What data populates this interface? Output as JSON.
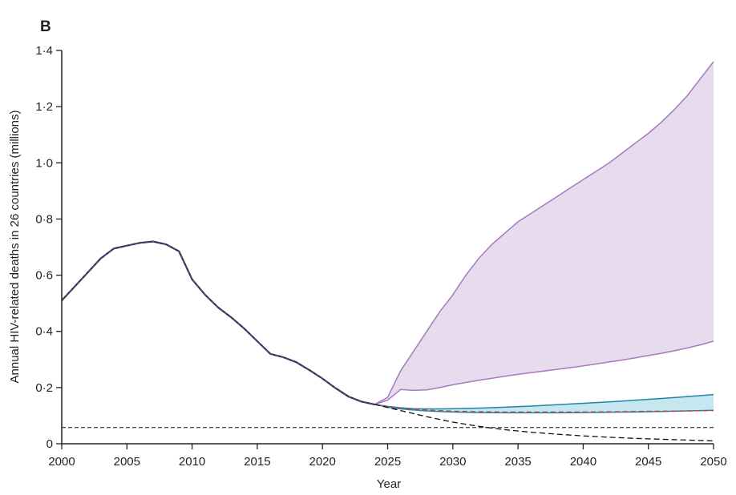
{
  "panel_label": "B",
  "chart_data": {
    "type": "line",
    "title": "",
    "xlabel": "Year",
    "ylabel": "Annual HIV-related deaths in 26 countries (millions)",
    "xlim": [
      2000,
      2050
    ],
    "ylim": [
      0,
      1.4
    ],
    "x_ticks": [
      2000,
      2005,
      2010,
      2015,
      2020,
      2025,
      2030,
      2035,
      2040,
      2045,
      2050
    ],
    "y_ticks": [
      0,
      0.2,
      0.4,
      0.6,
      0.8,
      1.0,
      1.2,
      1.4
    ],
    "y_tick_labels": [
      "0",
      "0·2",
      "0·4",
      "0·6",
      "0·8",
      "1·0",
      "1·2",
      "1·4"
    ],
    "grid": false,
    "legend": "none",
    "colors": {
      "historical": "#2f2f4f",
      "purple_line": "#a779bf",
      "purple_fill": "#e6dcee",
      "teal_line": "#1e87a8",
      "teal_fill": "#c6e6f0",
      "red_dashed": "#cc3a3a",
      "black_dashed": "#111111",
      "target": "#2f5a70"
    },
    "reference_line": {
      "y": 0.058,
      "style": "dashed"
    },
    "series": [
      {
        "role": "historical",
        "x": [
          2000,
          2001,
          2002,
          2003,
          2004,
          2005,
          2006,
          2007,
          2008,
          2009,
          2010,
          2011,
          2012,
          2013,
          2014,
          2015,
          2016,
          2017,
          2018,
          2019,
          2020,
          2021,
          2022,
          2023,
          2024
        ],
        "values": [
          0.51,
          0.56,
          0.61,
          0.66,
          0.695,
          0.705,
          0.715,
          0.72,
          0.71,
          0.685,
          0.585,
          0.53,
          0.485,
          0.45,
          0.41,
          0.365,
          0.32,
          0.308,
          0.29,
          0.262,
          0.232,
          0.198,
          0.168,
          0.15,
          0.14
        ]
      },
      {
        "role": "purple_upper",
        "x": [
          2024,
          2025,
          2026,
          2027,
          2028,
          2029,
          2030,
          2031,
          2032,
          2033,
          2034,
          2035,
          2036,
          2037,
          2038,
          2039,
          2040,
          2041,
          2042,
          2043,
          2044,
          2045,
          2046,
          2047,
          2048,
          2049,
          2050
        ],
        "values": [
          0.14,
          0.165,
          0.26,
          0.33,
          0.4,
          0.47,
          0.53,
          0.6,
          0.66,
          0.71,
          0.75,
          0.79,
          0.82,
          0.85,
          0.88,
          0.91,
          0.94,
          0.97,
          1.0,
          1.035,
          1.07,
          1.105,
          1.145,
          1.19,
          1.24,
          1.3,
          1.36
        ]
      },
      {
        "role": "purple_lower",
        "x": [
          2024,
          2025,
          2026,
          2027,
          2028,
          2029,
          2030,
          2031,
          2032,
          2033,
          2034,
          2035,
          2036,
          2037,
          2038,
          2039,
          2040,
          2041,
          2042,
          2043,
          2044,
          2045,
          2046,
          2047,
          2048,
          2049,
          2050
        ],
        "values": [
          0.14,
          0.155,
          0.193,
          0.19,
          0.192,
          0.2,
          0.21,
          0.218,
          0.226,
          0.233,
          0.24,
          0.247,
          0.253,
          0.259,
          0.265,
          0.271,
          0.277,
          0.284,
          0.291,
          0.298,
          0.306,
          0.314,
          0.322,
          0.331,
          0.341,
          0.352,
          0.365
        ]
      },
      {
        "role": "teal_upper",
        "x": [
          2024,
          2025,
          2026,
          2027,
          2028,
          2029,
          2030,
          2032,
          2034,
          2036,
          2038,
          2040,
          2042,
          2044,
          2046,
          2048,
          2050
        ],
        "values": [
          0.14,
          0.133,
          0.128,
          0.125,
          0.124,
          0.124,
          0.125,
          0.127,
          0.13,
          0.134,
          0.139,
          0.144,
          0.149,
          0.155,
          0.161,
          0.168,
          0.175
        ]
      },
      {
        "role": "teal_lower",
        "x": [
          2024,
          2025,
          2026,
          2027,
          2028,
          2029,
          2030,
          2032,
          2034,
          2036,
          2038,
          2040,
          2042,
          2044,
          2046,
          2048,
          2050
        ],
        "values": [
          0.14,
          0.13,
          0.124,
          0.12,
          0.117,
          0.115,
          0.113,
          0.111,
          0.11,
          0.11,
          0.11,
          0.111,
          0.112,
          0.113,
          0.115,
          0.117,
          0.119
        ]
      },
      {
        "role": "red_dashed",
        "x": [
          2024,
          2026,
          2028,
          2030,
          2032,
          2034,
          2036,
          2038,
          2040,
          2042,
          2044,
          2046,
          2048,
          2050
        ],
        "values": [
          0.14,
          0.127,
          0.12,
          0.116,
          0.114,
          0.113,
          0.113,
          0.113,
          0.113,
          0.114,
          0.115,
          0.116,
          0.117,
          0.118
        ]
      },
      {
        "role": "black_dashed",
        "x": [
          2024,
          2026,
          2028,
          2030,
          2032,
          2034,
          2036,
          2038,
          2040,
          2042,
          2044,
          2046,
          2048,
          2050
        ],
        "values": [
          0.14,
          0.118,
          0.096,
          0.077,
          0.062,
          0.05,
          0.041,
          0.034,
          0.028,
          0.023,
          0.019,
          0.016,
          0.013,
          0.01
        ]
      }
    ]
  }
}
